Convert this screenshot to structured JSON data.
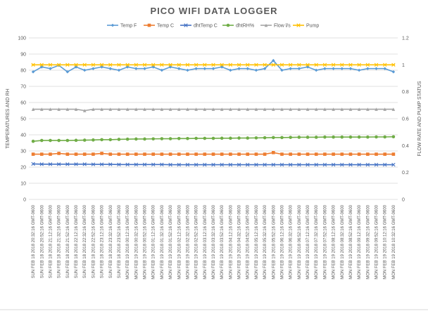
{
  "chart_data": {
    "type": "line",
    "title": "PICO WIFI DATA LOGGER",
    "ylabel": "TEMPERATURES AND RH",
    "y2label": "FLOW RATE AND PUMP STATUS",
    "xlabel": "",
    "ylim": [
      0,
      100
    ],
    "y2lim": [
      0,
      1.2
    ],
    "yticks": [
      "0",
      "10",
      "20",
      "30",
      "40",
      "50",
      "60",
      "70",
      "80",
      "90",
      "100"
    ],
    "y2ticks": [
      "0",
      "0.2",
      "0.4",
      "0.6",
      "0.8",
      "1",
      "1.2"
    ],
    "grid": true,
    "legend": "top",
    "categories": [
      "SUN FEB 18 2018 20:32:16 GMT-0600",
      "SUN FEB 18 2018 20:52:16 GMT-0600",
      "SUN FEB 18 2018 21:12:16 GMT-0600",
      "SUN FEB 18 2018 21:32:16 GMT-0600",
      "SUN FEB 18 2018 21:52:16 GMT-0600",
      "SUN FEB 18 2018 22:12:16 GMT-0600",
      "SUN FEB 18 2018 22:32:16 GMT-0600",
      "SUN FEB 18 2018 22:52:16 GMT-0600",
      "SUN FEB 18 2018 23:12:16 GMT-0600",
      "SUN FEB 18 2018 23:32:16 GMT-0600",
      "SUN FEB 18 2018 23:52:16 GMT-0600",
      "MON FEB 19 2018 00:12:16 GMT-0600",
      "MON FEB 19 2018 00:32:16 GMT-0600",
      "MON FEB 19 2018 00:52:16 GMT-0600",
      "MON FEB 19 2018 01:12:16 GMT-0600",
      "MON FEB 19 2018 01:32:16 GMT-0600",
      "MON FEB 19 2018 01:52:16 GMT-0600",
      "MON FEB 19 2018 02:12:16 GMT-0600",
      "MON FEB 19 2018 02:32:16 GMT-0600",
      "MON FEB 19 2018 02:52:16 GMT-0600",
      "MON FEB 19 2018 03:12:16 GMT-0600",
      "MON FEB 19 2018 03:32:16 GMT-0600",
      "MON FEB 19 2018 03:52:16 GMT-0600",
      "MON FEB 19 2018 04:12:16 GMT-0600",
      "MON FEB 19 2018 04:32:16 GMT-0600",
      "MON FEB 19 2018 04:52:16 GMT-0600",
      "MON FEB 19 2018 05:12:16 GMT-0600",
      "MON FEB 19 2018 05:32:16 GMT-0600",
      "MON FEB 19 2018 05:52:16 GMT-0600",
      "MON FEB 19 2018 06:12:16 GMT-0600",
      "MON FEB 19 2018 06:32:16 GMT-0600",
      "MON FEB 19 2018 06:52:16 GMT-0600",
      "MON FEB 19 2018 07:12:16 GMT-0600",
      "MON FEB 19 2018 07:32:16 GMT-0600",
      "MON FEB 19 2018 07:52:16 GMT-0600",
      "MON FEB 19 2018 08:12:16 GMT-0600",
      "MON FEB 19 2018 08:32:16 GMT-0600",
      "MON FEB 19 2018 08:52:16 GMT-0600",
      "MON FEB 19 2018 09:12:16 GMT-0600",
      "MON FEB 19 2018 09:32:16 GMT-0600",
      "MON FEB 19 2018 09:52:16 GMT-0600",
      "MON FEB 19 2018 10:12:16 GMT-0600",
      "MON FEB 19 2018 10:32:16 GMT-0600"
    ],
    "series": [
      {
        "name": "Temp F",
        "axis": "left",
        "color": "#5b9bd5",
        "marker": "diamond",
        "values": [
          79,
          82,
          81,
          83,
          79,
          82,
          80,
          81,
          82,
          81,
          80,
          82,
          81,
          81,
          82,
          80,
          82,
          81,
          80,
          81,
          81,
          81,
          82,
          80,
          81,
          81,
          80,
          81,
          86,
          80,
          81,
          81,
          82,
          80,
          81,
          81,
          81,
          81,
          80,
          81,
          81,
          81,
          79
        ]
      },
      {
        "name": "Temp C",
        "axis": "left",
        "color": "#ed7d31",
        "marker": "square",
        "values": [
          28,
          28,
          28,
          28.5,
          28,
          28,
          28,
          28,
          28.5,
          28,
          28,
          28,
          28,
          28,
          28,
          28,
          28,
          28,
          28,
          28,
          28,
          28,
          28,
          28,
          28,
          28,
          28,
          28,
          29,
          28,
          28,
          28,
          28,
          28,
          28,
          28,
          28,
          28,
          28,
          28,
          28,
          28,
          28
        ]
      },
      {
        "name": "dhtTemp C",
        "axis": "left",
        "color": "#4472c4",
        "marker": "x",
        "values": [
          22,
          21.8,
          21.8,
          21.8,
          21.8,
          21.8,
          21.8,
          21.7,
          21.7,
          21.7,
          21.6,
          21.6,
          21.6,
          21.6,
          21.6,
          21.6,
          21.5,
          21.5,
          21.5,
          21.5,
          21.5,
          21.5,
          21.5,
          21.5,
          21.5,
          21.5,
          21.5,
          21.5,
          21.5,
          21.5,
          21.5,
          21.5,
          21.5,
          21.5,
          21.5,
          21.5,
          21.5,
          21.5,
          21.5,
          21.5,
          21.5,
          21.5,
          21.5
        ]
      },
      {
        "name": "dhtRH%",
        "axis": "left",
        "color": "#70ad47",
        "marker": "circle",
        "values": [
          36,
          36.5,
          36.5,
          36.5,
          36.5,
          36.6,
          36.7,
          36.8,
          37,
          37,
          37.2,
          37.3,
          37.4,
          37.4,
          37.5,
          37.6,
          37.6,
          37.7,
          37.7,
          37.8,
          37.8,
          37.8,
          37.9,
          37.9,
          38,
          38,
          38.1,
          38.2,
          38.3,
          38.3,
          38.4,
          38.5,
          38.5,
          38.5,
          38.6,
          38.6,
          38.6,
          38.6,
          38.6,
          38.6,
          38.7,
          38.7,
          38.8
        ]
      },
      {
        "name": "Flow l/s",
        "axis": "right",
        "color": "#a5a5a5",
        "marker": "triangle",
        "values": [
          0.67,
          0.67,
          0.67,
          0.67,
          0.67,
          0.67,
          0.66,
          0.67,
          0.67,
          0.67,
          0.67,
          0.67,
          0.67,
          0.67,
          0.67,
          0.67,
          0.67,
          0.67,
          0.67,
          0.67,
          0.67,
          0.67,
          0.67,
          0.67,
          0.67,
          0.67,
          0.67,
          0.67,
          0.67,
          0.67,
          0.67,
          0.67,
          0.67,
          0.67,
          0.67,
          0.67,
          0.67,
          0.67,
          0.67,
          0.67,
          0.67,
          0.67,
          0.67
        ]
      },
      {
        "name": "Pump",
        "axis": "right",
        "color": "#ffc000",
        "marker": "star",
        "values": [
          1,
          1,
          1,
          1,
          1,
          1,
          1,
          1,
          1,
          1,
          1,
          1,
          1,
          1,
          1,
          1,
          1,
          1,
          1,
          1,
          1,
          1,
          1,
          1,
          1,
          1,
          1,
          1,
          1,
          1,
          1,
          1,
          1,
          1,
          1,
          1,
          1,
          1,
          1,
          1,
          1,
          1,
          1
        ]
      }
    ]
  }
}
